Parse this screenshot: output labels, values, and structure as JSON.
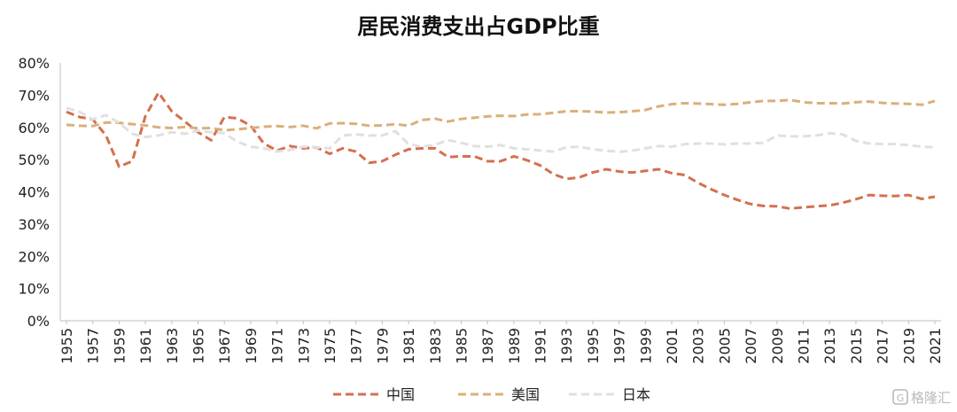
{
  "chart_data": {
    "type": "line",
    "title": "居民消费支出占GDP比重",
    "xlabel": "",
    "ylabel": "",
    "ylim": [
      0,
      80
    ],
    "y_ticks": [
      "0%",
      "10%",
      "20%",
      "30%",
      "40%",
      "50%",
      "60%",
      "70%",
      "80%"
    ],
    "x_ticks": [
      "1955",
      "1957",
      "1959",
      "1961",
      "1963",
      "1965",
      "1967",
      "1969",
      "1971",
      "1973",
      "1975",
      "1977",
      "1979",
      "1981",
      "1983",
      "1985",
      "1987",
      "1989",
      "1991",
      "1993",
      "1995",
      "1997",
      "1999",
      "2001",
      "2003",
      "2005",
      "2007",
      "2009",
      "2011",
      "2013",
      "2015",
      "2017",
      "2019",
      "2021"
    ],
    "x_start": 1955,
    "grid": false,
    "legend_position": "bottom",
    "series": [
      {
        "name": "中国",
        "color": "#d4704f",
        "values": [
          64.8,
          63.2,
          62.5,
          57.5,
          47.8,
          49.5,
          63.5,
          70.8,
          65.0,
          61.8,
          58.5,
          56.0,
          63.2,
          62.8,
          60.5,
          55.0,
          52.8,
          54.2,
          53.5,
          53.8,
          51.8,
          53.5,
          52.5,
          49.0,
          49.5,
          51.5,
          53.2,
          53.5,
          53.5,
          50.8,
          51.0,
          51.0,
          49.5,
          49.5,
          51.0,
          49.8,
          48.2,
          45.5,
          44.0,
          44.5,
          46.0,
          47.0,
          46.3,
          46.0,
          46.5,
          47.0,
          45.8,
          45.2,
          42.8,
          40.8,
          39.0,
          37.5,
          36.2,
          35.6,
          35.5,
          34.8,
          35.2,
          35.5,
          35.8,
          36.6,
          37.7,
          39.0,
          38.8,
          38.7,
          39.0,
          37.8,
          38.5
        ]
      },
      {
        "name": "美国",
        "color": "#d9b07a",
        "values": [
          60.8,
          60.5,
          60.4,
          61.5,
          61.4,
          61.0,
          60.6,
          60.0,
          59.8,
          60.1,
          59.7,
          59.8,
          59.1,
          59.4,
          59.8,
          60.2,
          60.4,
          60.1,
          60.5,
          59.7,
          61.2,
          61.3,
          61.1,
          60.5,
          60.6,
          61.0,
          60.5,
          62.3,
          62.7,
          61.8,
          62.6,
          63.0,
          63.4,
          63.6,
          63.5,
          64.0,
          64.1,
          64.5,
          65.0,
          65.0,
          64.9,
          64.6,
          64.7,
          65.0,
          65.4,
          66.5,
          67.2,
          67.5,
          67.4,
          67.2,
          67.0,
          67.3,
          67.8,
          68.2,
          68.2,
          68.5,
          67.8,
          67.5,
          67.5,
          67.4,
          67.8,
          68.0,
          67.6,
          67.4,
          67.3,
          67.0,
          68.2
        ]
      },
      {
        "name": "日本",
        "color": "#e0e0e0",
        "values": [
          66.0,
          64.8,
          62.5,
          63.8,
          61.4,
          58.0,
          57.0,
          57.5,
          58.5,
          58.0,
          59.0,
          58.5,
          58.2,
          55.5,
          54.0,
          53.5,
          52.5,
          53.0,
          54.0,
          53.8,
          53.5,
          57.5,
          57.8,
          57.5,
          57.5,
          58.8,
          54.8,
          54.0,
          54.6,
          56.0,
          55.2,
          54.2,
          54.0,
          54.5,
          53.5,
          53.2,
          52.8,
          52.5,
          53.8,
          54.0,
          53.2,
          52.8,
          52.4,
          52.8,
          53.5,
          54.2,
          54.0,
          54.8,
          55.0,
          55.0,
          54.7,
          55.0,
          55.0,
          55.2,
          57.5,
          57.2,
          57.2,
          57.5,
          58.2,
          57.8,
          55.8,
          55.0,
          54.8,
          54.8,
          54.5,
          54.0,
          53.8
        ]
      }
    ]
  },
  "watermark": {
    "icon": "gelonghui-logo-icon",
    "text": "格隆汇"
  }
}
